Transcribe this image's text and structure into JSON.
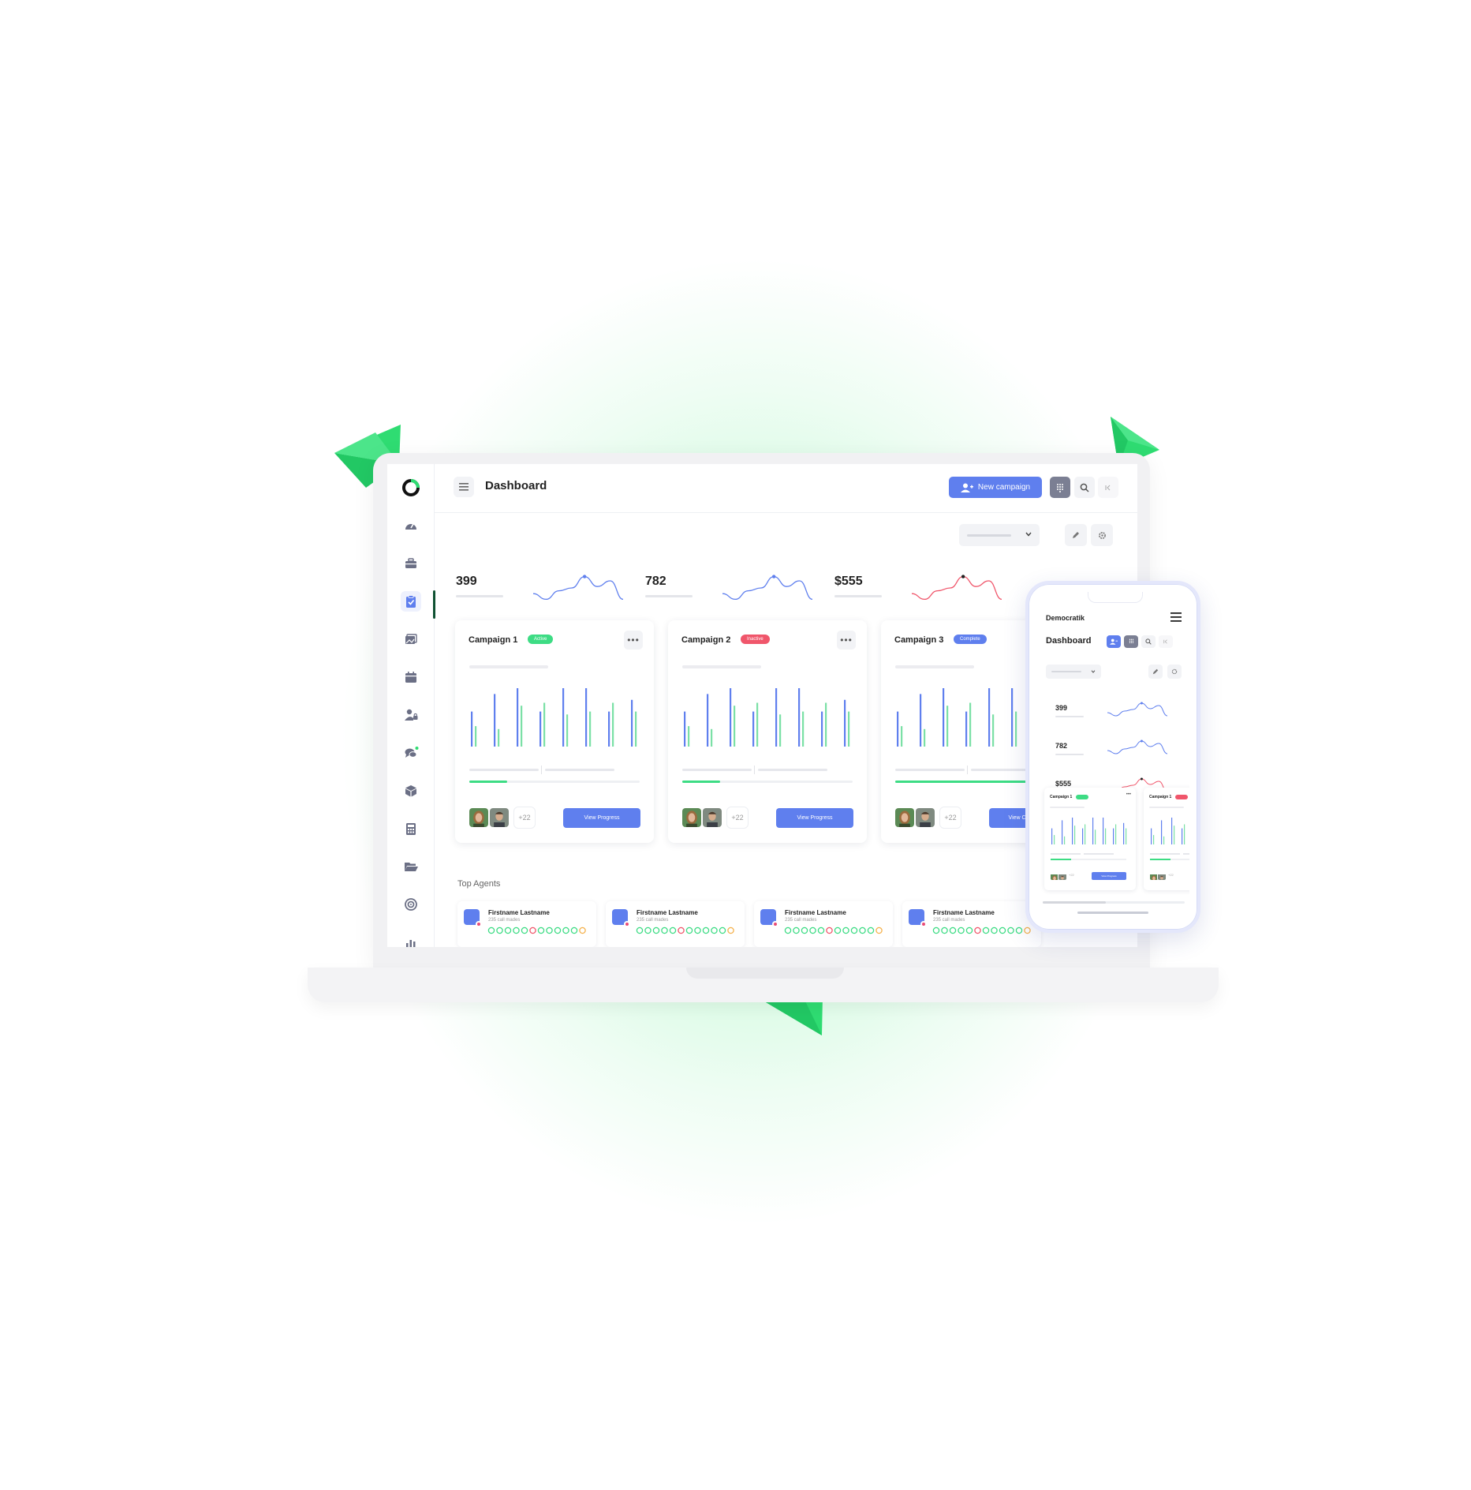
{
  "app": {
    "page_title": "Dashboard",
    "new_campaign_label": "New campaign"
  },
  "sidebar": {
    "icons": [
      "dashboard-gauge-icon",
      "briefcase-icon",
      "clipboard-check-icon",
      "images-icon",
      "calendar-icon",
      "user-lock-icon",
      "chat-icon",
      "box-icon",
      "calculator-icon",
      "folder-open-icon",
      "target-icon",
      "chart-icon"
    ],
    "active_index": 2
  },
  "stats": [
    {
      "value": "399",
      "trend": [
        0.3,
        0.1,
        0.4,
        0.5,
        0.9,
        0.55,
        0.75,
        0.1
      ],
      "color": "#5f7fee",
      "marker_color": "#5f7fee"
    },
    {
      "value": "782",
      "trend": [
        0.3,
        0.1,
        0.4,
        0.5,
        0.9,
        0.55,
        0.75,
        0.1
      ],
      "color": "#5f7fee",
      "marker_color": "#5f7fee"
    },
    {
      "value": "$555",
      "trend": [
        0.3,
        0.1,
        0.4,
        0.5,
        0.9,
        0.55,
        0.75,
        0.1
      ],
      "color": "#f0566b",
      "marker_color": "#222222"
    }
  ],
  "campaigns": [
    {
      "title": "Campaign 1",
      "status": "Active",
      "status_color": "#3ddc84",
      "progress": 0.22,
      "extra_members": "+22",
      "button": "View Progress",
      "bars_blue": [
        0.6,
        0.9,
        1.0,
        0.6,
        1.0,
        1.0,
        0.6,
        0.8
      ],
      "bars_green": [
        0.35,
        0.3,
        0.7,
        0.75,
        0.55,
        0.6,
        0.75,
        0.6
      ]
    },
    {
      "title": "Campaign 2",
      "status": "Inactive",
      "status_color": "#f0566b",
      "progress": 0.22,
      "extra_members": "+22",
      "button": "View Progress",
      "bars_blue": [
        0.6,
        0.9,
        1.0,
        0.6,
        1.0,
        1.0,
        0.6,
        0.8
      ],
      "bars_green": [
        0.35,
        0.3,
        0.7,
        0.75,
        0.55,
        0.6,
        0.75,
        0.6
      ]
    },
    {
      "title": "Campaign 3",
      "status": "Complete",
      "status_color": "#5f7fee",
      "progress": 1.0,
      "extra_members": "+22",
      "button": "View Campaign",
      "bars_blue": [
        0.6,
        0.9,
        1.0,
        0.6,
        1.0,
        1.0,
        0.6,
        0.8
      ],
      "bars_green": [
        0.35,
        0.3,
        0.7,
        0.75,
        0.55,
        0.6,
        0.75,
        0.6
      ]
    }
  ],
  "top_agents": {
    "title": "Top Agents",
    "agents": [
      {
        "name": "Firstname Lastname",
        "sub": "235 call mades"
      },
      {
        "name": "Firstname Lastname",
        "sub": "235 call mades"
      },
      {
        "name": "Firstname Lastname",
        "sub": "235 call mades"
      },
      {
        "name": "Firstname Lastname",
        "sub": "235 call mades"
      }
    ],
    "dot_colors": [
      "#3ddc84",
      "#3ddc84",
      "#3ddc84",
      "#3ddc84",
      "#3ddc84",
      "#f0566b",
      "#3ddc84",
      "#3ddc84",
      "#3ddc84",
      "#3ddc84",
      "#3ddc84",
      "#f5b14c"
    ]
  },
  "phone": {
    "brand": "Democratik",
    "title": "Dashboard",
    "stats": [
      "399",
      "782",
      "$555"
    ],
    "cards": [
      {
        "title": "Campaign 1",
        "badge_color": "#3ddc84",
        "extra_members": "+22",
        "button": "View Progress"
      },
      {
        "title": "Campaign 1",
        "badge_color": "#f0566b",
        "extra_members": "+22",
        "button": ""
      }
    ]
  },
  "colors": {
    "accent": "#5f7fee",
    "green": "#3ddc84",
    "red": "#f0566b",
    "brand_green": "#2fdc72"
  }
}
